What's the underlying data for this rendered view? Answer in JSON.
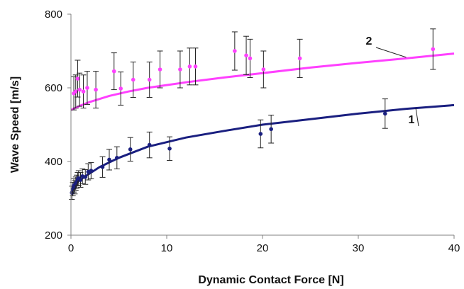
{
  "chart_data": {
    "type": "scatter",
    "xlabel": "Dynamic Contact Force [N]",
    "ylabel": "Wave Speed [m/s]",
    "xlim": [
      0,
      40
    ],
    "ylim": [
      200,
      800
    ],
    "xticks": [
      "0",
      "10",
      "20",
      "30",
      "40"
    ],
    "yticks": [
      "200",
      "400",
      "600",
      "800"
    ],
    "grid": false,
    "legend": "none",
    "series": [
      {
        "name": "1",
        "color": "#1a1f80",
        "points": [
          {
            "x": 0.1,
            "y": 315,
            "err": 18
          },
          {
            "x": 0.2,
            "y": 325,
            "err": 18
          },
          {
            "x": 0.3,
            "y": 335,
            "err": 18
          },
          {
            "x": 0.4,
            "y": 330,
            "err": 18
          },
          {
            "x": 0.5,
            "y": 340,
            "err": 18
          },
          {
            "x": 0.6,
            "y": 345,
            "err": 18
          },
          {
            "x": 0.7,
            "y": 352,
            "err": 18
          },
          {
            "x": 0.8,
            "y": 355,
            "err": 20
          },
          {
            "x": 1.0,
            "y": 350,
            "err": 20
          },
          {
            "x": 1.2,
            "y": 360,
            "err": 20
          },
          {
            "x": 1.5,
            "y": 358,
            "err": 20
          },
          {
            "x": 1.8,
            "y": 372,
            "err": 22
          },
          {
            "x": 2.1,
            "y": 375,
            "err": 22
          },
          {
            "x": 3.3,
            "y": 385,
            "err": 28
          },
          {
            "x": 4.0,
            "y": 405,
            "err": 28
          },
          {
            "x": 4.8,
            "y": 410,
            "err": 30
          },
          {
            "x": 6.2,
            "y": 433,
            "err": 32
          },
          {
            "x": 8.2,
            "y": 445,
            "err": 35
          },
          {
            "x": 10.3,
            "y": 435,
            "err": 32
          },
          {
            "x": 19.8,
            "y": 475,
            "err": 38
          },
          {
            "x": 20.9,
            "y": 488,
            "err": 38
          },
          {
            "x": 32.8,
            "y": 530,
            "err": 40
          }
        ],
        "fit_curve": [
          {
            "x": 0,
            "y": 315
          },
          {
            "x": 0.3,
            "y": 335
          },
          {
            "x": 0.7,
            "y": 345
          },
          {
            "x": 1.5,
            "y": 360
          },
          {
            "x": 3,
            "y": 385
          },
          {
            "x": 5,
            "y": 410
          },
          {
            "x": 8,
            "y": 440
          },
          {
            "x": 12,
            "y": 465
          },
          {
            "x": 16,
            "y": 483
          },
          {
            "x": 20,
            "y": 500
          },
          {
            "x": 25,
            "y": 515
          },
          {
            "x": 30,
            "y": 530
          },
          {
            "x": 35,
            "y": 543
          },
          {
            "x": 40,
            "y": 553
          }
        ]
      },
      {
        "name": "2",
        "color": "#ff40ff",
        "points": [
          {
            "x": 0.3,
            "y": 585,
            "err": 45
          },
          {
            "x": 0.5,
            "y": 590,
            "err": 45
          },
          {
            "x": 0.7,
            "y": 625,
            "err": 50
          },
          {
            "x": 0.9,
            "y": 595,
            "err": 45
          },
          {
            "x": 1.3,
            "y": 590,
            "err": 45
          },
          {
            "x": 1.7,
            "y": 600,
            "err": 45
          },
          {
            "x": 2.6,
            "y": 595,
            "err": 50
          },
          {
            "x": 4.5,
            "y": 645,
            "err": 50
          },
          {
            "x": 5.2,
            "y": 598,
            "err": 45
          },
          {
            "x": 6.5,
            "y": 622,
            "err": 48
          },
          {
            "x": 8.2,
            "y": 622,
            "err": 48
          },
          {
            "x": 9.3,
            "y": 650,
            "err": 50
          },
          {
            "x": 11.4,
            "y": 650,
            "err": 50
          },
          {
            "x": 12.4,
            "y": 658,
            "err": 50
          },
          {
            "x": 13.0,
            "y": 658,
            "err": 50
          },
          {
            "x": 17.1,
            "y": 700,
            "err": 52
          },
          {
            "x": 18.3,
            "y": 688,
            "err": 52
          },
          {
            "x": 18.7,
            "y": 680,
            "err": 52
          },
          {
            "x": 20.1,
            "y": 650,
            "err": 50
          },
          {
            "x": 23.9,
            "y": 680,
            "err": 52
          },
          {
            "x": 37.8,
            "y": 705,
            "err": 55
          }
        ],
        "fit_curve": [
          {
            "x": 0,
            "y": 540
          },
          {
            "x": 1,
            "y": 552
          },
          {
            "x": 2,
            "y": 562
          },
          {
            "x": 4,
            "y": 578
          },
          {
            "x": 6,
            "y": 590
          },
          {
            "x": 8,
            "y": 600
          },
          {
            "x": 12,
            "y": 615
          },
          {
            "x": 16,
            "y": 628
          },
          {
            "x": 20,
            "y": 640
          },
          {
            "x": 25,
            "y": 655
          },
          {
            "x": 30,
            "y": 668
          },
          {
            "x": 35,
            "y": 680
          },
          {
            "x": 40,
            "y": 693
          }
        ]
      }
    ]
  }
}
